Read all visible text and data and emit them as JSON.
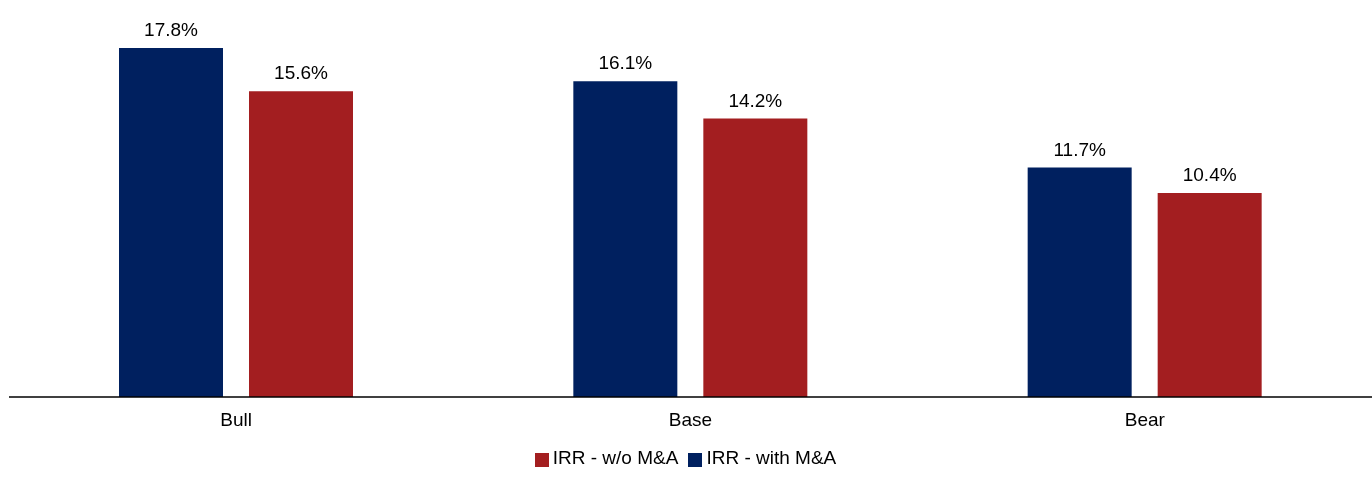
{
  "chart_data": {
    "type": "bar",
    "categories": [
      "Bull",
      "Base",
      "Bear"
    ],
    "series": [
      {
        "name": "IRR - with M&A",
        "color": "#00205f",
        "values": [
          17.8,
          16.1,
          11.7
        ],
        "value_labels": [
          "17.8%",
          "16.1%",
          "11.7%"
        ]
      },
      {
        "name": "IRR - w/o M&A",
        "color": "#a31e20",
        "values": [
          15.6,
          14.2,
          10.4
        ],
        "value_labels": [
          "15.6%",
          "14.2%",
          "10.4%"
        ]
      }
    ],
    "grid": false,
    "legend": "bottom"
  }
}
